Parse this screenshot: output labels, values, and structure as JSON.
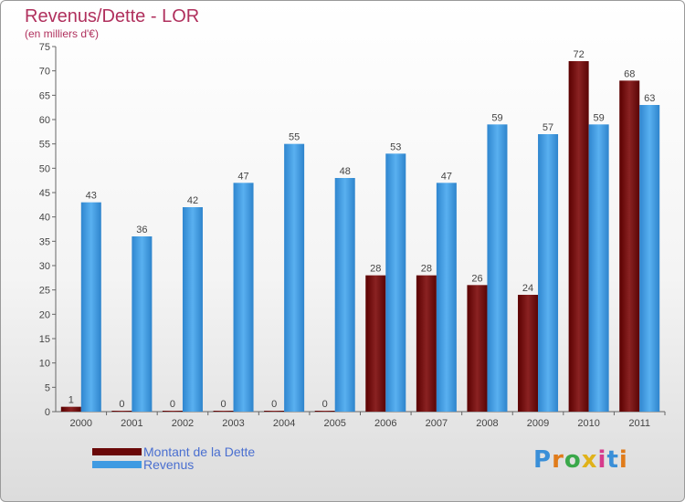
{
  "chart_data": {
    "type": "bar",
    "title": "Revenus/Dette - LOR",
    "subtitle": "(en milliers d'€)",
    "categories": [
      "2000",
      "2001",
      "2002",
      "2003",
      "2004",
      "2005",
      "2006",
      "2007",
      "2008",
      "2009",
      "2010",
      "2011"
    ],
    "series": [
      {
        "name": "Montant de la Dette",
        "color": "#7a1010",
        "values": [
          1,
          0,
          0,
          0,
          0,
          0,
          28,
          28,
          26,
          24,
          72,
          68
        ]
      },
      {
        "name": "Revenus",
        "color": "#3f9be2",
        "values": [
          43,
          36,
          42,
          47,
          55,
          48,
          53,
          47,
          59,
          57,
          59,
          63
        ]
      }
    ],
    "ylim": [
      0,
      75
    ],
    "yticks": [
      0,
      5,
      10,
      15,
      20,
      25,
      30,
      35,
      40,
      45,
      50,
      55,
      60,
      65,
      70,
      75
    ],
    "grid": false,
    "legend": "bottom-left"
  },
  "logo": {
    "text": "Proxiti"
  }
}
